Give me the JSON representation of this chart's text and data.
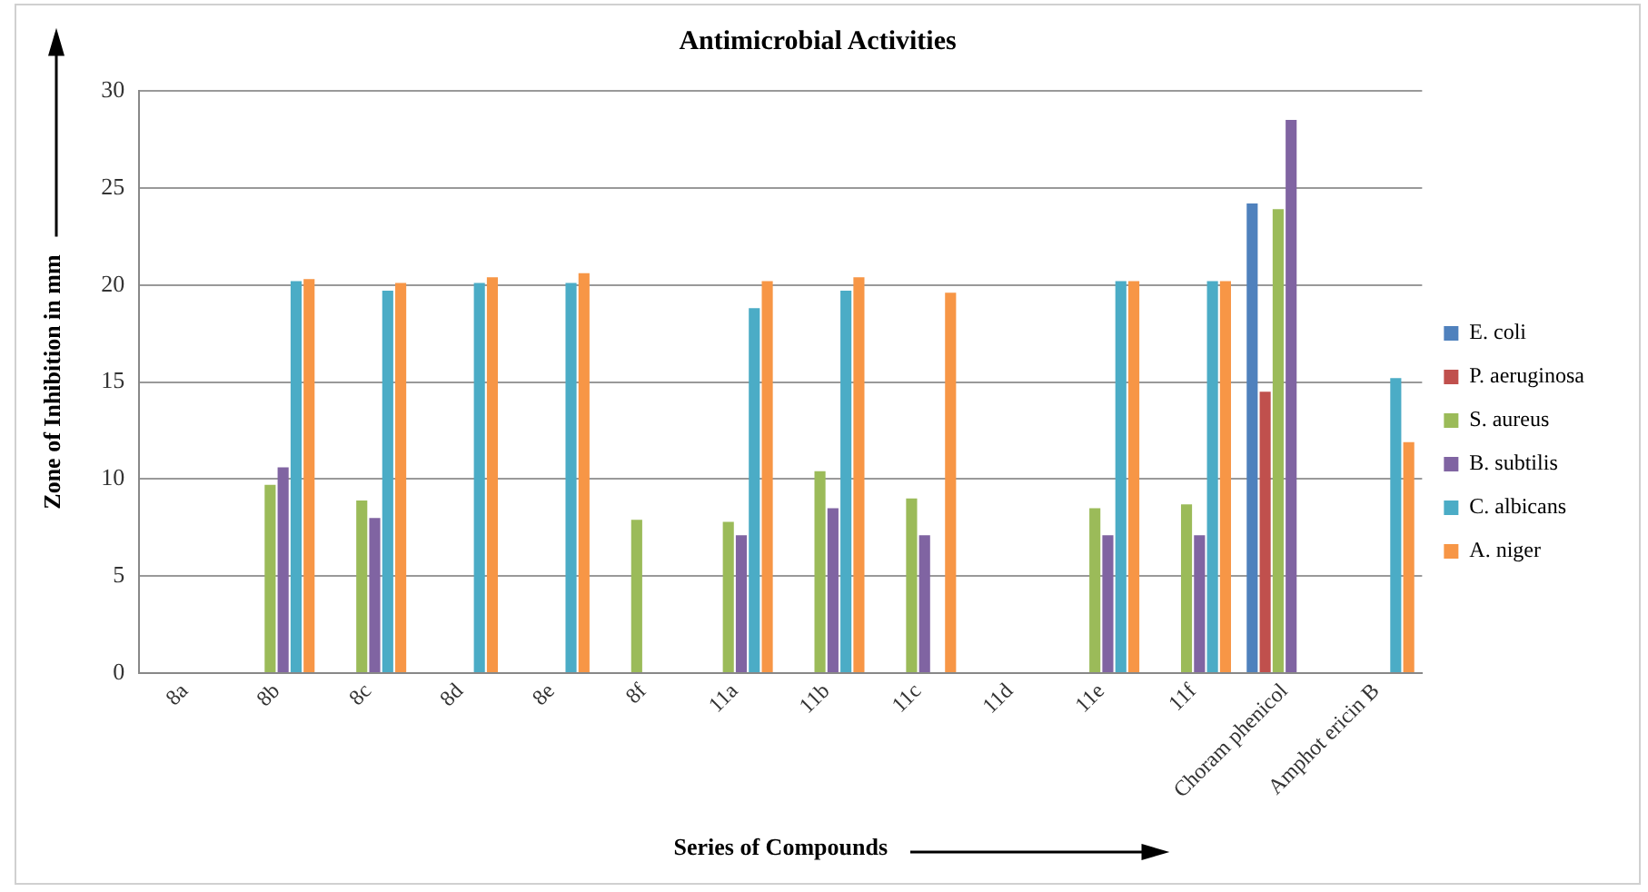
{
  "chart_data": {
    "type": "bar",
    "title": "Antimicrobial Activities",
    "xlabel": "Series of Compounds",
    "ylabel": "Zone of Inhibition in mm",
    "categories": [
      "8a",
      "8b",
      "8c",
      "8d",
      "8e",
      "8f",
      "11a",
      "11b",
      "11c",
      "11d",
      "11e",
      "11f",
      "Choram phenicol",
      "Amphot ericin B"
    ],
    "series": [
      {
        "name": "E. coli",
        "color": "#4f81bd",
        "values": [
          null,
          null,
          null,
          null,
          null,
          null,
          null,
          null,
          null,
          null,
          null,
          null,
          24.2,
          null
        ]
      },
      {
        "name": "P. aeruginosa",
        "color": "#c0504d",
        "values": [
          null,
          null,
          null,
          null,
          null,
          null,
          null,
          null,
          null,
          null,
          null,
          null,
          14.5,
          null
        ]
      },
      {
        "name": "S. aureus",
        "color": "#9bbb59",
        "values": [
          null,
          9.7,
          8.9,
          null,
          null,
          7.9,
          7.8,
          10.4,
          9.0,
          null,
          8.5,
          8.7,
          23.9,
          null
        ]
      },
      {
        "name": "B. subtilis",
        "color": "#8064a2",
        "values": [
          null,
          10.6,
          8.0,
          null,
          null,
          null,
          7.1,
          8.5,
          7.1,
          null,
          7.1,
          7.1,
          28.5,
          null
        ]
      },
      {
        "name": "C. albicans",
        "color": "#4bacc6",
        "values": [
          null,
          20.2,
          19.7,
          20.1,
          20.1,
          null,
          18.8,
          19.7,
          null,
          null,
          20.2,
          20.2,
          null,
          15.2
        ]
      },
      {
        "name": "A. niger",
        "color": "#f79646",
        "values": [
          null,
          20.3,
          20.1,
          20.4,
          20.6,
          null,
          20.2,
          20.4,
          19.6,
          null,
          20.2,
          20.2,
          null,
          11.9
        ]
      }
    ],
    "ylim": [
      0,
      30
    ],
    "yticks": [
      0,
      5,
      10,
      15,
      20,
      25,
      30
    ],
    "grid": "y",
    "legend": "right"
  }
}
